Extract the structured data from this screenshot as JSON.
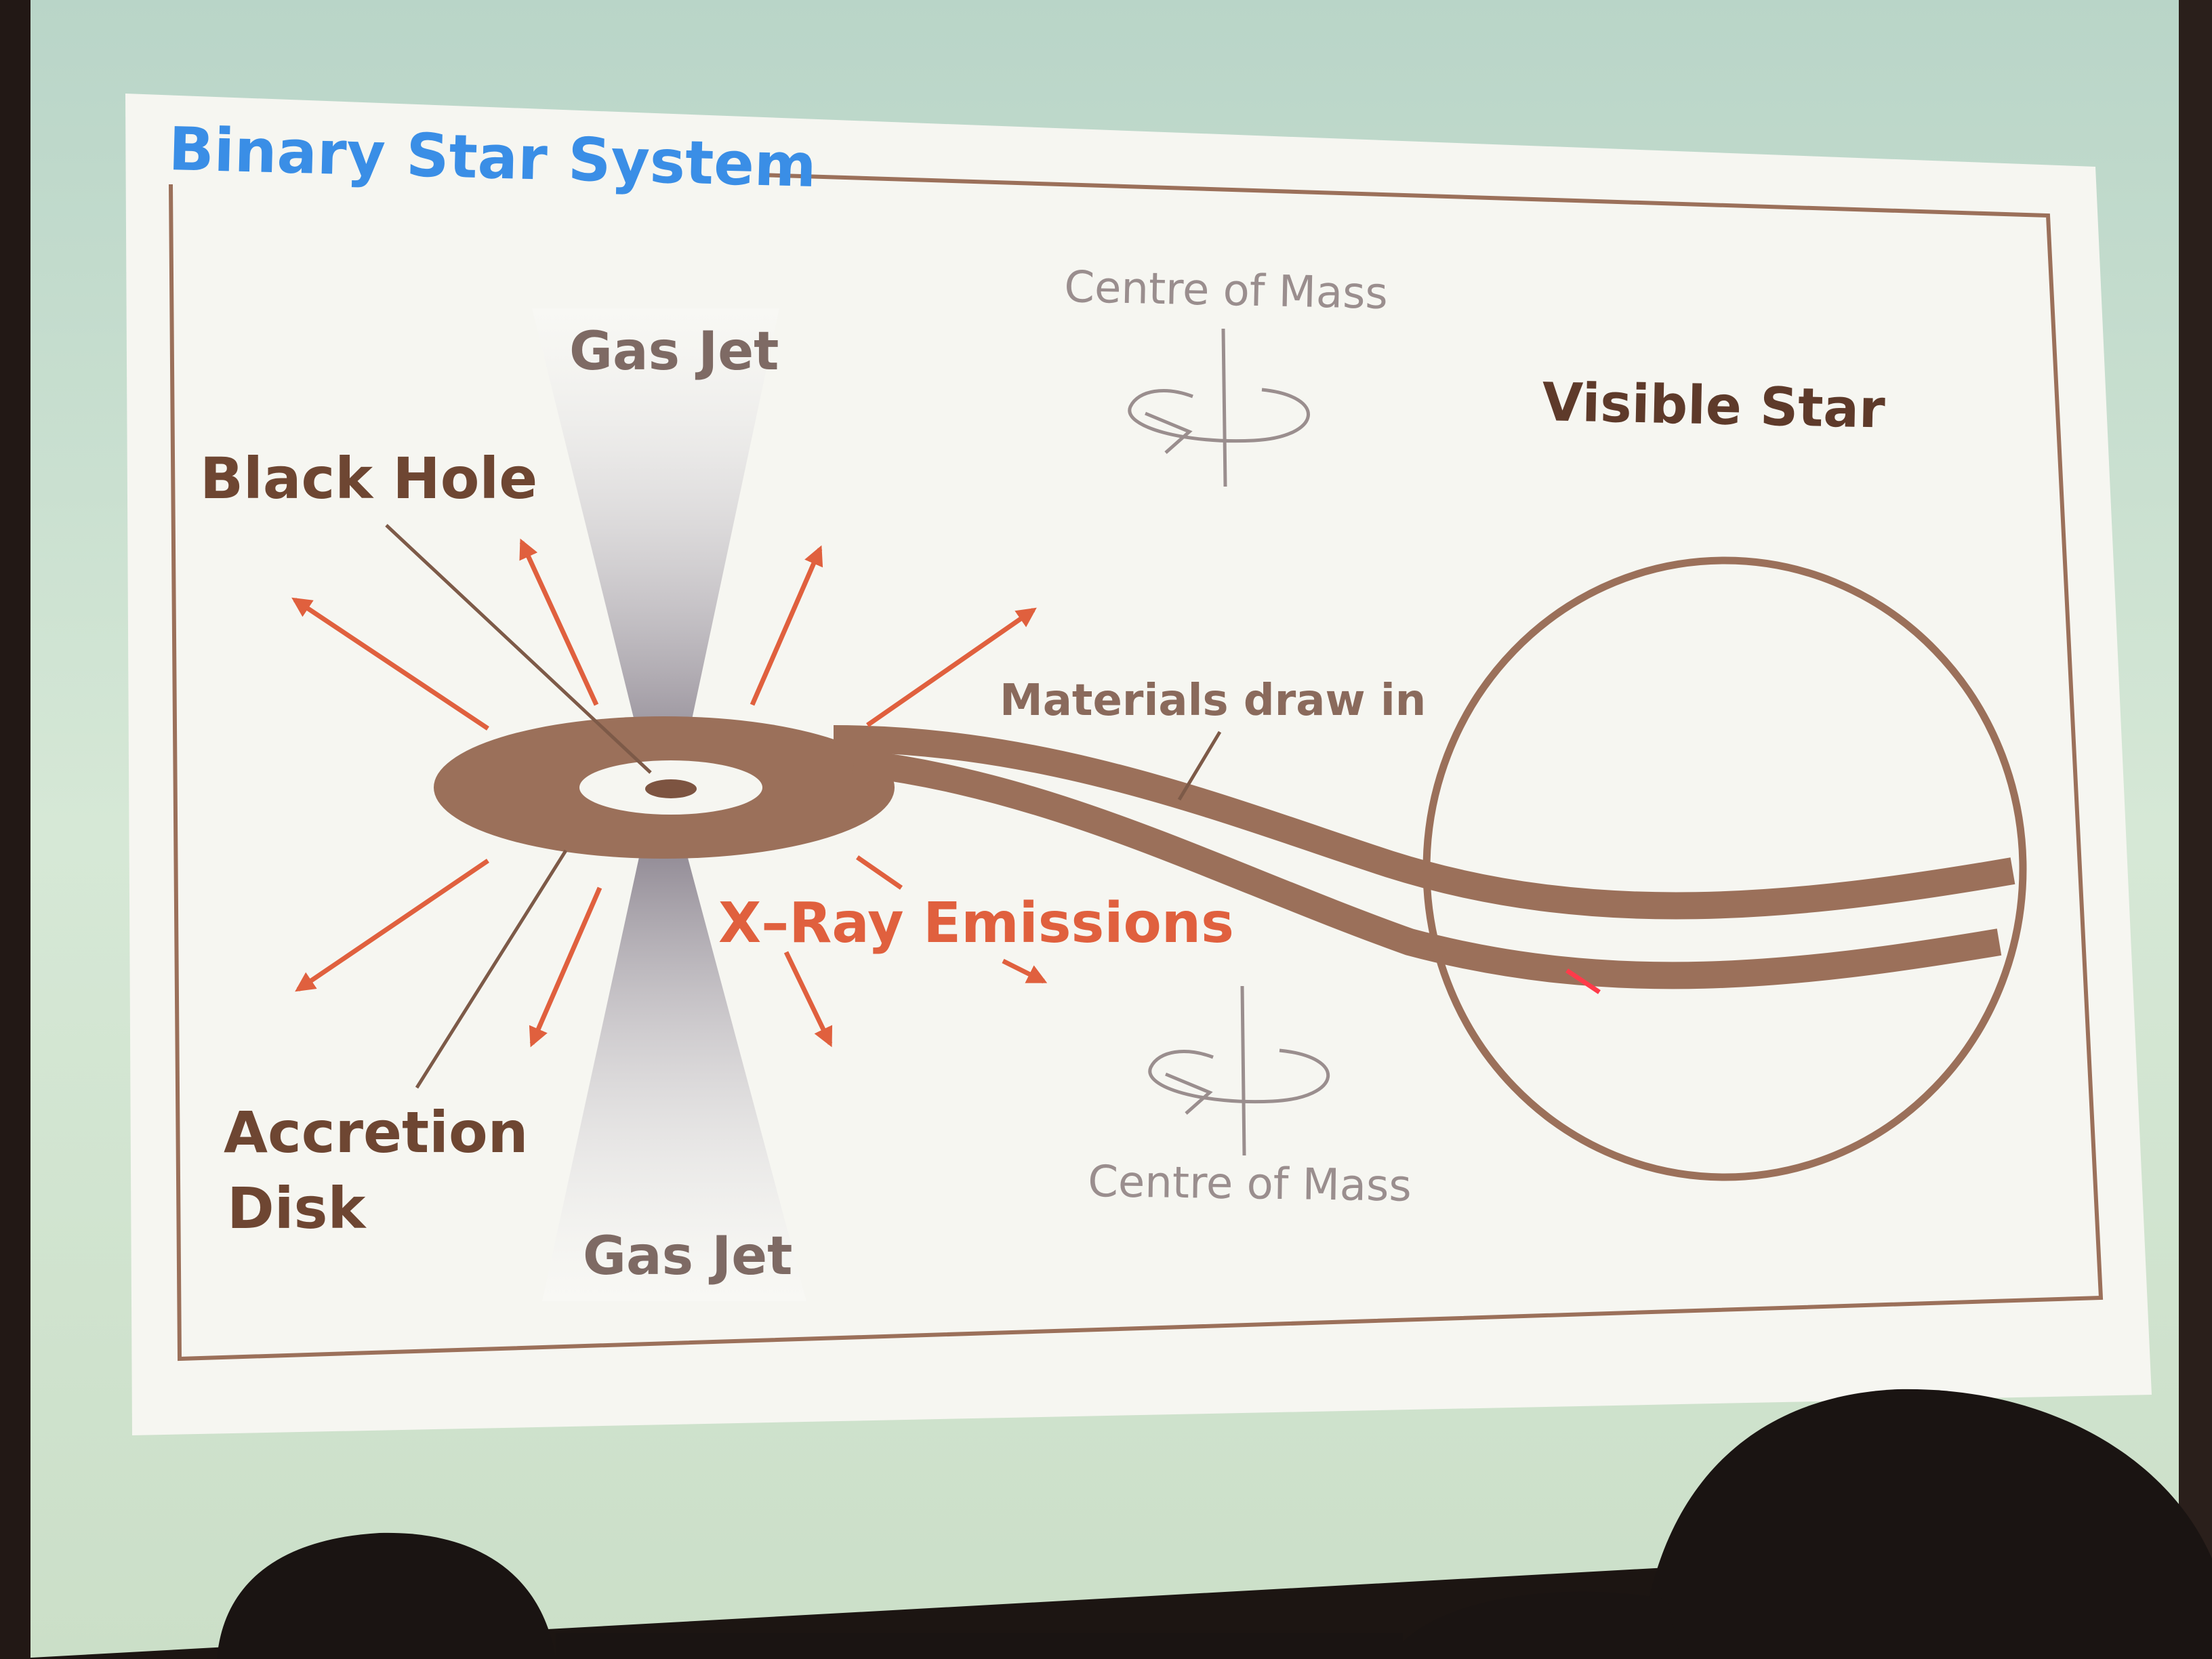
{
  "slide": {
    "title": "Binary Star System",
    "labels": {
      "black_hole": "Black Hole",
      "gas_jet_top": "Gas Jet",
      "gas_jet_bottom": "Gas Jet",
      "accretion_disk_line1": "Accretion",
      "accretion_disk_line2": "Disk",
      "xray_emissions": "X–Ray Emissions",
      "materials_draw_in": "Materials draw in",
      "visible_star": "Visible Star",
      "centre_of_mass_top": "Centre of Mass",
      "centre_of_mass_bottom": "Centre of Mass"
    }
  },
  "colors": {
    "title": "#3a8ee6",
    "diagram_brown": "#9b705a",
    "label_brown": "#6e4632",
    "xray_red": "#e0603e",
    "grey_text": "#9a8e8e",
    "jet_grey": "#8e8690",
    "slide_white": "#f6f6f1",
    "screen_green": "#d3e6d4"
  },
  "icons": [
    "rotation-arrow-icon",
    "rotation-arrow-icon"
  ]
}
